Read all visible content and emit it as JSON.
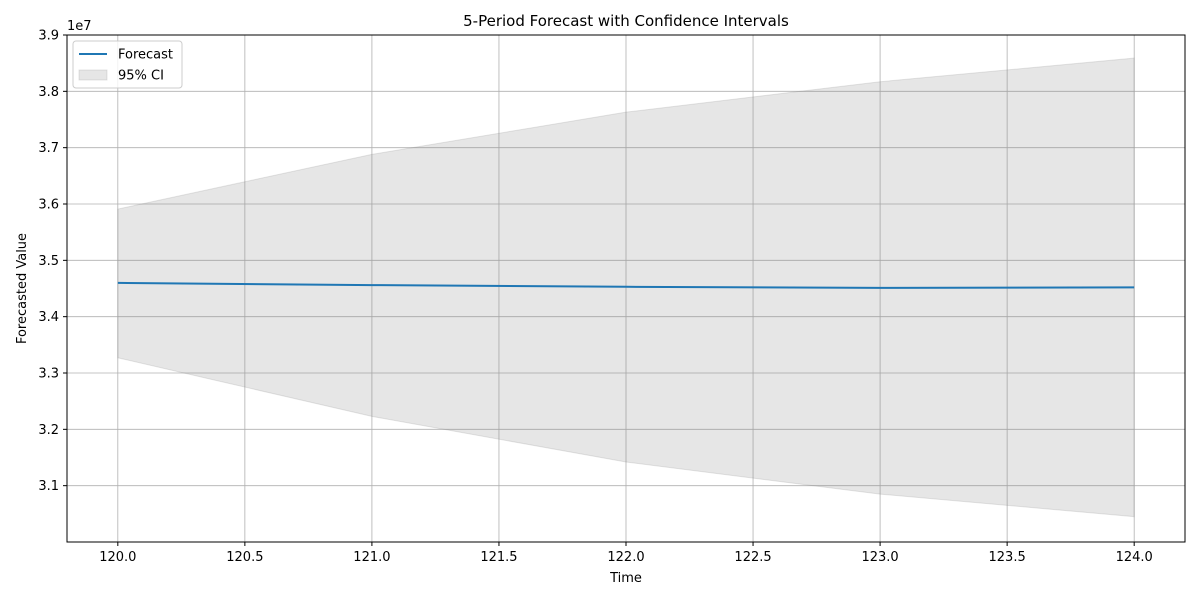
{
  "chart_data": {
    "type": "line",
    "title": "5-Period Forecast with Confidence Intervals",
    "xlabel": "Time",
    "ylabel": "Forecasted Value",
    "y_offset_label": "1e7",
    "xlim": [
      119.8,
      124.2
    ],
    "ylim": [
      3.0,
      3.9
    ],
    "y_scale_factor": 10000000,
    "x_ticks": [
      120.0,
      120.5,
      121.0,
      121.5,
      122.0,
      122.5,
      123.0,
      123.5,
      124.0
    ],
    "x_tick_labels": [
      "120.0",
      "120.5",
      "121.0",
      "121.5",
      "122.0",
      "122.5",
      "123.0",
      "123.5",
      "124.0"
    ],
    "y_ticks": [
      3.1,
      3.2,
      3.3,
      3.4,
      3.5,
      3.6,
      3.7,
      3.8,
      3.9
    ],
    "y_tick_labels": [
      "3.1",
      "3.2",
      "3.3",
      "3.4",
      "3.5",
      "3.6",
      "3.7",
      "3.8",
      "3.9"
    ],
    "grid": true,
    "legend_position": "top-left",
    "x": [
      120,
      121,
      122,
      123,
      124
    ],
    "series": [
      {
        "name": "Forecast",
        "type": "line",
        "color": "#1f77b4",
        "values": [
          3.46,
          3.456,
          3.453,
          3.451,
          3.452
        ]
      }
    ],
    "band": {
      "name": "95% CI",
      "color": "#808080",
      "opacity": 0.2,
      "lower": [
        3.327,
        3.223,
        3.142,
        3.085,
        3.045
      ],
      "upper": [
        3.591,
        3.688,
        3.763,
        3.817,
        3.859
      ]
    }
  }
}
